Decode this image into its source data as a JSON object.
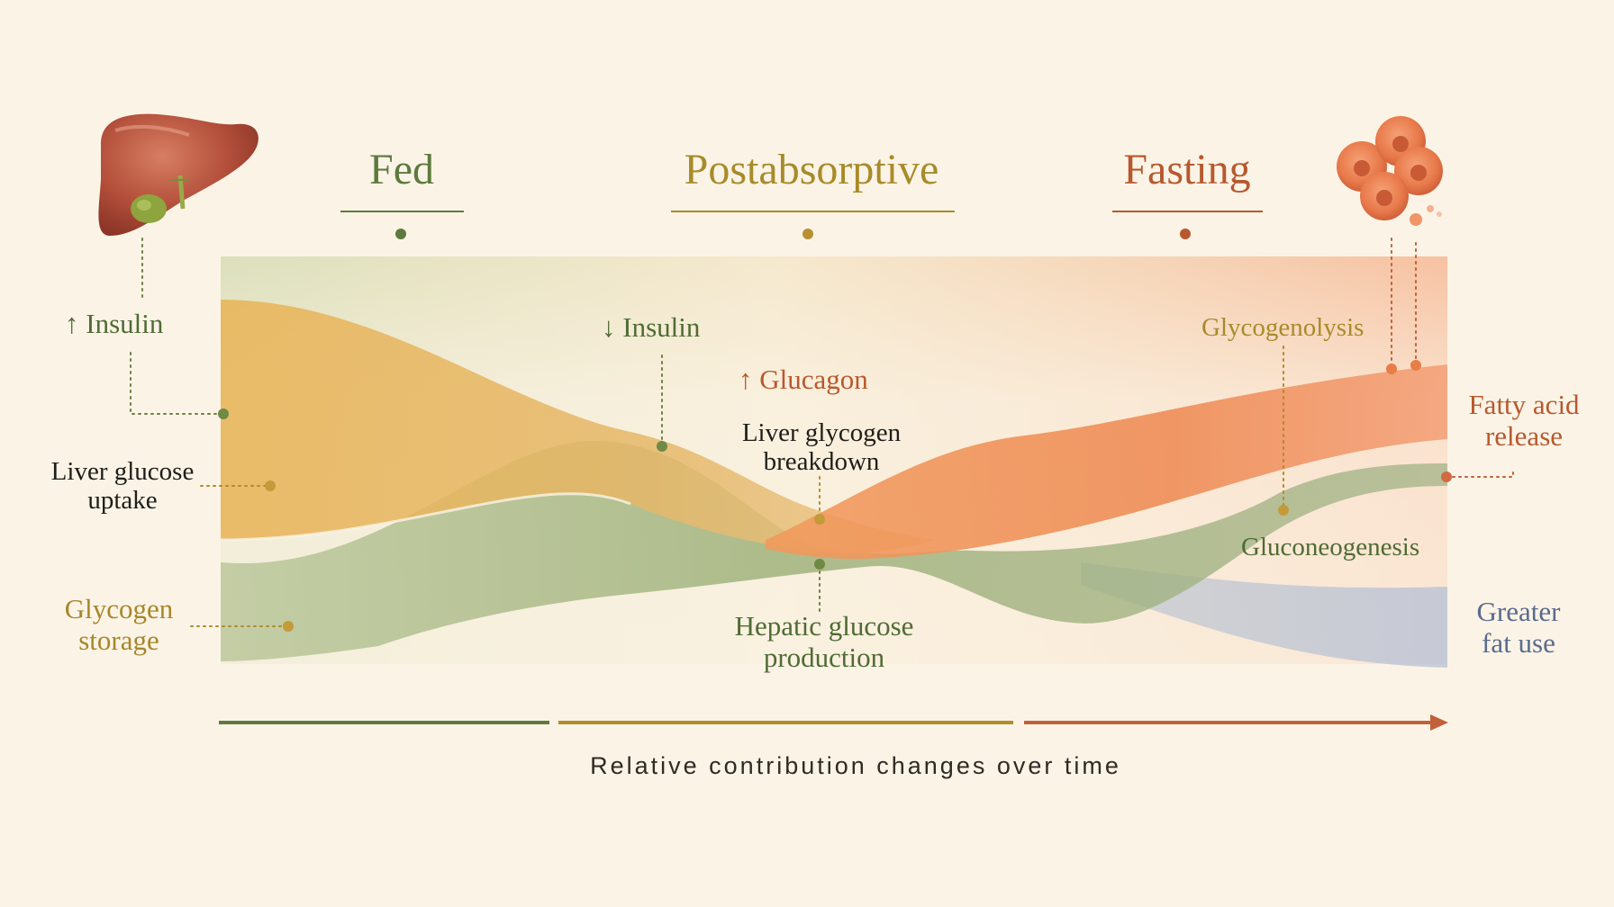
{
  "phases": {
    "fed": "Fed",
    "postabsorptive": "Postabsorptive",
    "fasting": "Fasting"
  },
  "labels": {
    "insulin_up": "↑ Insulin",
    "insulin_down": "↓ Insulin",
    "glucagon_up": "↑ Glucagon",
    "liver_glucose_uptake": [
      "Liver glucose",
      "uptake"
    ],
    "glycogen_storage": [
      "Glycogen",
      "storage"
    ],
    "liver_glycogen_breakdown": [
      "Liver glycogen",
      "breakdown"
    ],
    "hepatic_glucose_production": [
      "Hepatic glucose",
      "production"
    ],
    "glycogenolysis": "Glycogenolysis",
    "gluconeogenesis": "Gluconeogenesis",
    "fatty_acid_release": [
      "Fatty acid",
      "release"
    ],
    "greater_fat_use": [
      "Greater",
      "fat use"
    ]
  },
  "axis_caption": "Relative contribution changes over time",
  "icons": {
    "liver": "liver-icon",
    "fat_cells": "fat-cells-icon"
  },
  "colors": {
    "background": "#fbf4e6",
    "fed": "#5e7a3e",
    "postabsorptive": "#a88b2a",
    "fasting": "#b8582f",
    "gold_band": "#e9b458",
    "green_band": "#9fb27e",
    "orange_band": "#ee8a52",
    "blue_band": "#a8b8d2"
  }
}
